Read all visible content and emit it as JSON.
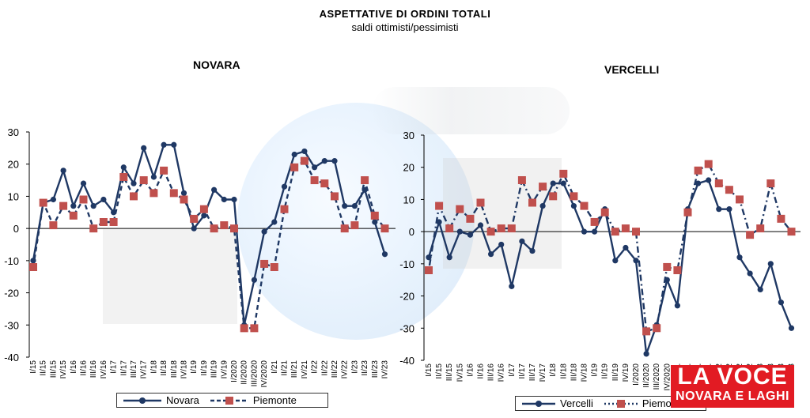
{
  "header": {
    "title": "ASPETTATIVE DI ORDINI TOTALI",
    "subtitle": "saldi ottimisti/pessimisti"
  },
  "logo": {
    "line1": "LA VOCE",
    "line2": "NOVARA E LAGHI"
  },
  "colors": {
    "navy": "#1f3864",
    "red": "#c0504d",
    "axis": "#000000"
  },
  "chart_data": [
    {
      "type": "line",
      "title": "NOVARA",
      "categories": [
        "I/15",
        "II/15",
        "III/15",
        "IV/15",
        "I/16",
        "II/16",
        "III/16",
        "IV/16",
        "I/17",
        "II/17",
        "III/17",
        "IV/17",
        "I/18",
        "II/18",
        "III/18",
        "IV/18",
        "I/19",
        "II/19",
        "III/19",
        "IV/19",
        "I/2020",
        "II/2020",
        "III/2020",
        "IV/2020",
        "I/21",
        "II/21",
        "III/21",
        "IV/21",
        "I/22",
        "II/22",
        "III/22",
        "IV/22",
        "I/23",
        "II/23",
        "III/23",
        "IV/23"
      ],
      "tick_labels": [
        "I/15",
        "II/15",
        "III/15",
        "IV/15",
        "I/16",
        "II/16",
        "III/16",
        "IV/16",
        "I/17",
        "II/17",
        "III/17",
        "IV/17",
        "I/18",
        "II/18",
        "III/18",
        "IV/18",
        "I/19",
        "II/19",
        "III/19",
        "IV/19",
        "I/2020",
        "II/2020",
        "III/2020",
        "IV/2020",
        "I/21",
        "II/21",
        "III/21",
        "IV/21",
        "I/22",
        "II/22",
        "III/22",
        "IV/22",
        "I/23",
        "II/23",
        "III/23",
        "IV/23"
      ],
      "ylim": [
        -40,
        30
      ],
      "yticks": [
        30,
        20,
        10,
        0,
        -10,
        -20,
        -30,
        -40
      ],
      "series": [
        {
          "name": "Novara",
          "style": "solid-circle",
          "values": [
            -10,
            8,
            9,
            18,
            7,
            14,
            7,
            9,
            5,
            19,
            14,
            25,
            16,
            26,
            26,
            11,
            0,
            4,
            12,
            9,
            9,
            -30,
            -16,
            -1,
            2,
            13,
            23,
            24,
            19,
            21,
            21,
            7,
            7,
            12,
            2,
            -8
          ]
        },
        {
          "name": "Piemonte",
          "style": "dashed-square",
          "values": [
            -12,
            8,
            1,
            7,
            4,
            9,
            0,
            2,
            2,
            16,
            10,
            15,
            11,
            18,
            11,
            9,
            3,
            6,
            0,
            1,
            0,
            -31,
            -31,
            -11,
            -12,
            6,
            19,
            21,
            15,
            14,
            10,
            0,
            1,
            15,
            4,
            0
          ]
        }
      ]
    },
    {
      "type": "line",
      "title": "VERCELLI",
      "categories": [
        "I/15",
        "II/15",
        "III/15",
        "IV/15",
        "I/16",
        "II/16",
        "III/16",
        "IV/16",
        "I/17",
        "II/17",
        "III/17",
        "IV/17",
        "I/18",
        "II/18",
        "III/18",
        "IV/18",
        "I/19",
        "II/19",
        "III/19",
        "IV/19",
        "I/2020",
        "II/2020",
        "III/2020",
        "IV/2020",
        "I/21",
        "II/21",
        "III/21",
        "IV/21",
        "I/22",
        "II/22",
        "III/22",
        "IV/22",
        "I/23",
        "II/23",
        "III/23",
        "IV/23"
      ],
      "tick_labels": [
        "I/15",
        "II/15",
        "III/15",
        "IV/15",
        "I/16",
        "II/16",
        "III/16",
        "IV/16",
        "I/17",
        "II/17",
        "III/17",
        "IV/17",
        "I/18",
        "II/18",
        "III/18",
        "IV/18",
        "I/19",
        "II/19",
        "III/19",
        "IV/19",
        "I/2020",
        "II/2020",
        "III/2020",
        "IV/2020",
        "I/21",
        "II/21",
        "III/21",
        "IV/21",
        "I/22",
        "II/22",
        "III/22",
        "IV/22",
        "I/23",
        "II/23",
        "III/23",
        "IV/23"
      ],
      "ylim": [
        -40,
        30
      ],
      "yticks": [
        30,
        20,
        10,
        0,
        -10,
        -20,
        -30,
        -40
      ],
      "series": [
        {
          "name": "Vercelli",
          "style": "solid-circle",
          "values": [
            -8,
            3,
            -8,
            0,
            -1,
            2,
            -7,
            -4,
            -17,
            -3,
            -6,
            8,
            15,
            15,
            8,
            0,
            0,
            7,
            -9,
            -5,
            -9,
            -38,
            -29,
            -15,
            -23,
            7,
            15,
            16,
            7,
            7,
            -8,
            -13,
            -18,
            -10,
            -22,
            -30
          ]
        },
        {
          "name": "Piemonte",
          "style": "dashed-square",
          "values": [
            -12,
            8,
            1,
            7,
            4,
            9,
            0,
            1,
            1,
            16,
            9,
            14,
            11,
            18,
            11,
            8,
            3,
            6,
            0,
            1,
            0,
            -31,
            -30,
            -11,
            -12,
            6,
            19,
            21,
            15,
            13,
            10,
            -1,
            1,
            15,
            4,
            0
          ]
        }
      ]
    }
  ]
}
